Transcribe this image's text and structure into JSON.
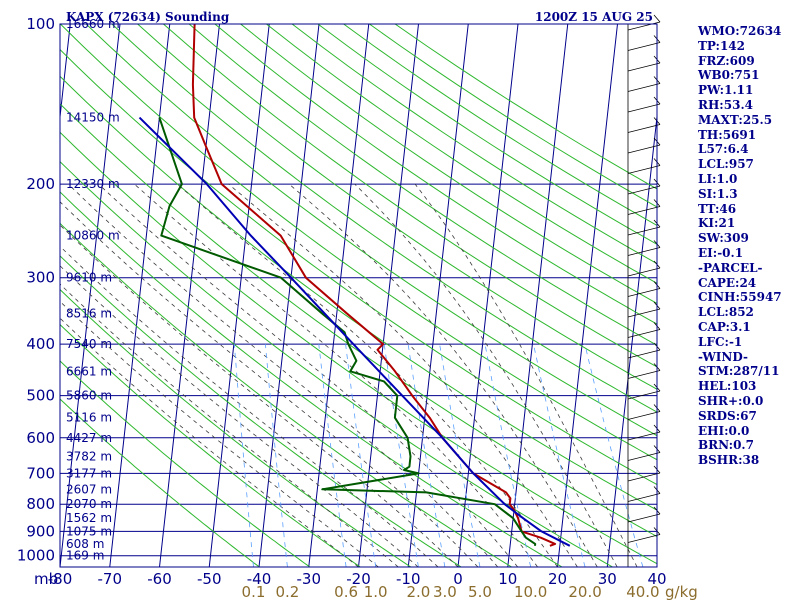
{
  "chart_data": {
    "type": "line",
    "title": "KAPX (72634) Sounding",
    "time_label": "1200Z 15 AUG 25",
    "pressure_axis": {
      "unit": "mb",
      "ticks": [
        100,
        200,
        300,
        400,
        500,
        600,
        700,
        800,
        900,
        1000
      ],
      "range": [
        100,
        1050
      ]
    },
    "temperature_axis": {
      "ticks": [
        -80,
        -70,
        -60,
        -50,
        -40,
        -30,
        -20,
        -10,
        0,
        10,
        20,
        30,
        40
      ],
      "tick_labels": [
        "-80",
        "-70",
        "-60",
        "-50",
        "-40",
        "-30",
        "-20",
        "-10",
        "0",
        "10",
        "20",
        "30",
        "40"
      ],
      "range": [
        -80,
        40
      ]
    },
    "height_labels": [
      {
        "p": 100,
        "label": "16660 m"
      },
      {
        "p": 150,
        "label": "14150 m"
      },
      {
        "p": 200,
        "label": "12330 m"
      },
      {
        "p": 250,
        "label": "10860 m"
      },
      {
        "p": 300,
        "label": "9610 m"
      },
      {
        "p": 350,
        "label": "8516 m"
      },
      {
        "p": 400,
        "label": "7540 m"
      },
      {
        "p": 450,
        "label": "6661 m"
      },
      {
        "p": 500,
        "label": "5860 m"
      },
      {
        "p": 550,
        "label": "5116 m"
      },
      {
        "p": 600,
        "label": "4427 m"
      },
      {
        "p": 650,
        "label": "3782 m"
      },
      {
        "p": 700,
        "label": "3177 m"
      },
      {
        "p": 750,
        "label": "2607 m"
      },
      {
        "p": 800,
        "label": "2070 m"
      },
      {
        "p": 850,
        "label": "1562 m"
      },
      {
        "p": 900,
        "label": "1075 m"
      },
      {
        "p": 950,
        "label": "608 m"
      },
      {
        "p": 1000,
        "label": "169 m"
      }
    ],
    "mixing_ratio_labels": [
      {
        "w": 0.1,
        "label": "0.1"
      },
      {
        "w": 0.2,
        "label": "0.2"
      },
      {
        "w": 0.6,
        "label": "0.6"
      },
      {
        "w": 1.0,
        "label": "1.0"
      },
      {
        "w": 2.0,
        "label": "2.0"
      },
      {
        "w": 3.0,
        "label": "3.0"
      },
      {
        "w": 5.0,
        "label": "5.0"
      },
      {
        "w": 10.0,
        "label": "10.0"
      },
      {
        "w": 20.0,
        "label": "20.0"
      },
      {
        "w": 40.0,
        "label": "40.0"
      }
    ],
    "mixing_ratio_unit": "g/kg",
    "series": [
      {
        "color": "#b00000",
        "points": [
          [
            958,
            18
          ],
          [
            950,
            19
          ],
          [
            925,
            16
          ],
          [
            900,
            12
          ],
          [
            850,
            11
          ],
          [
            820,
            10
          ],
          [
            800,
            9
          ],
          [
            780,
            9
          ],
          [
            760,
            8
          ],
          [
            700,
            1
          ],
          [
            600,
            -6
          ],
          [
            550,
            -9
          ],
          [
            500,
            -13
          ],
          [
            450,
            -17
          ],
          [
            410,
            -21
          ],
          [
            400,
            -20
          ],
          [
            350,
            -28
          ],
          [
            300,
            -37
          ],
          [
            250,
            -43
          ],
          [
            200,
            -56
          ],
          [
            170,
            -60
          ],
          [
            150,
            -63
          ],
          [
            130,
            -64
          ],
          [
            100,
            -65
          ]
        ]
      },
      {
        "color": "#005a00",
        "points": [
          [
            958,
            15
          ],
          [
            950,
            15
          ],
          [
            925,
            13
          ],
          [
            900,
            12
          ],
          [
            850,
            10
          ],
          [
            800,
            6
          ],
          [
            760,
            -8
          ],
          [
            750,
            -29
          ],
          [
            700,
            -10
          ],
          [
            690,
            -13
          ],
          [
            680,
            -12
          ],
          [
            650,
            -12
          ],
          [
            600,
            -13
          ],
          [
            550,
            -16
          ],
          [
            500,
            -16
          ],
          [
            470,
            -19
          ],
          [
            450,
            -26
          ],
          [
            430,
            -25
          ],
          [
            400,
            -27
          ],
          [
            380,
            -28
          ],
          [
            350,
            -33
          ],
          [
            300,
            -42
          ],
          [
            250,
            -67
          ],
          [
            220,
            -66
          ],
          [
            200,
            -64
          ],
          [
            150,
            -70
          ]
        ]
      },
      {
        "color": "#0000b4",
        "points": [
          [
            958,
            22
          ],
          [
            900,
            16
          ],
          [
            850,
            12
          ],
          [
            800,
            8
          ],
          [
            700,
            1
          ],
          [
            600,
            -6
          ],
          [
            500,
            -15
          ],
          [
            400,
            -26
          ],
          [
            300,
            -40
          ],
          [
            250,
            -49
          ],
          [
            200,
            -59
          ],
          [
            150,
            -74
          ]
        ]
      }
    ]
  },
  "indices": [
    "WMO:72634",
    "TP:142",
    "FRZ:609",
    "WB0:751",
    "PW:1.11",
    "RH:53.4",
    "MAXT:25.5",
    "TH:5691",
    "L57:6.4",
    "LCL:957",
    "LI:1.0",
    "SI:1.3",
    "TT:46",
    "KI:21",
    "SW:309",
    "EI:-0.1",
    "-PARCEL-",
    "CAPE:24",
    "CINH:55947",
    "LCL:852",
    "CAP:3.1",
    "LFC:-1",
    "-WIND-",
    "STM:287/11",
    "HEL:103",
    "SHR+:0.0",
    "SRDS:67",
    "EHI:0.0",
    "BRN:0.7",
    "BSHR:38"
  ]
}
